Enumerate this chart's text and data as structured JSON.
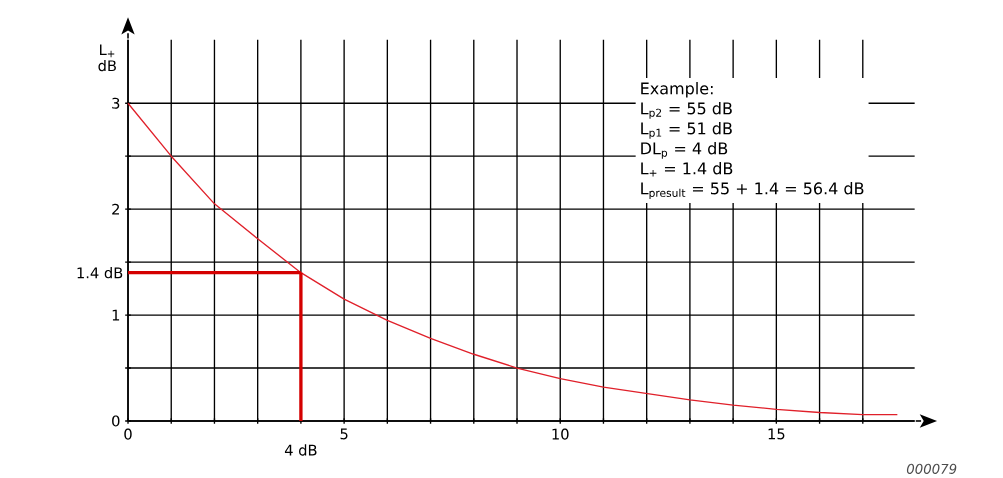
{
  "chart_data": {
    "type": "line",
    "ylabel": "L$_{+}$ dB",
    "x": [
      0,
      1,
      2,
      3,
      4,
      5,
      6,
      7,
      8,
      9,
      10,
      11,
      12,
      13,
      14,
      15,
      16,
      17,
      17.8
    ],
    "series": [
      {
        "color": "#e0202a",
        "values": [
          3.0,
          2.5,
          2.05,
          1.72,
          1.4,
          1.15,
          0.95,
          0.78,
          0.63,
          0.5,
          0.4,
          0.32,
          0.26,
          0.2,
          0.15,
          0.11,
          0.08,
          0.06,
          0.06
        ]
      }
    ],
    "xlim": [
      0,
      18.2
    ],
    "ylim": [
      0,
      3.6
    ],
    "xticks": [
      0,
      {
        "value": 1,
        "label": null
      },
      {
        "value": 2,
        "label": null
      },
      {
        "value": 3,
        "label": null
      },
      {
        "value": 4,
        "label": null
      },
      5,
      {
        "value": 6,
        "label": null
      },
      {
        "value": 7,
        "label": null
      },
      {
        "value": 8,
        "label": null
      },
      {
        "value": 9,
        "label": null
      },
      10,
      {
        "value": 11,
        "label": null
      },
      {
        "value": 12,
        "label": null
      },
      {
        "value": 13,
        "label": null
      },
      {
        "value": 14,
        "label": null
      },
      15,
      {
        "value": 16,
        "label": null
      },
      {
        "value": 17,
        "label": null
      }
    ],
    "yticks": [
      0,
      {
        "value": 0.5,
        "label": null
      },
      1,
      {
        "value": 1.5,
        "label": null
      },
      2,
      {
        "value": 2.5,
        "label": null
      },
      3
    ],
    "grid": true,
    "ref_lines": [
      {
        "axis": "y",
        "value": 1.4,
        "label": "1.4 dB",
        "color": "#d40000"
      },
      {
        "axis": "x",
        "value": 4,
        "label": "4 dB",
        "color": "#d40000"
      }
    ],
    "annotations": [
      "Example:",
      "L$_{p2}$ = 55 dB",
      "L$_{p1}$ = 51 dB",
      "DL$_{p}$ = 4 dB",
      "L$_{+}$ = 1.4 dB",
      "L$_{presult}$ = 55 + 1.4 = 56.4 dB",
      "000079"
    ]
  }
}
